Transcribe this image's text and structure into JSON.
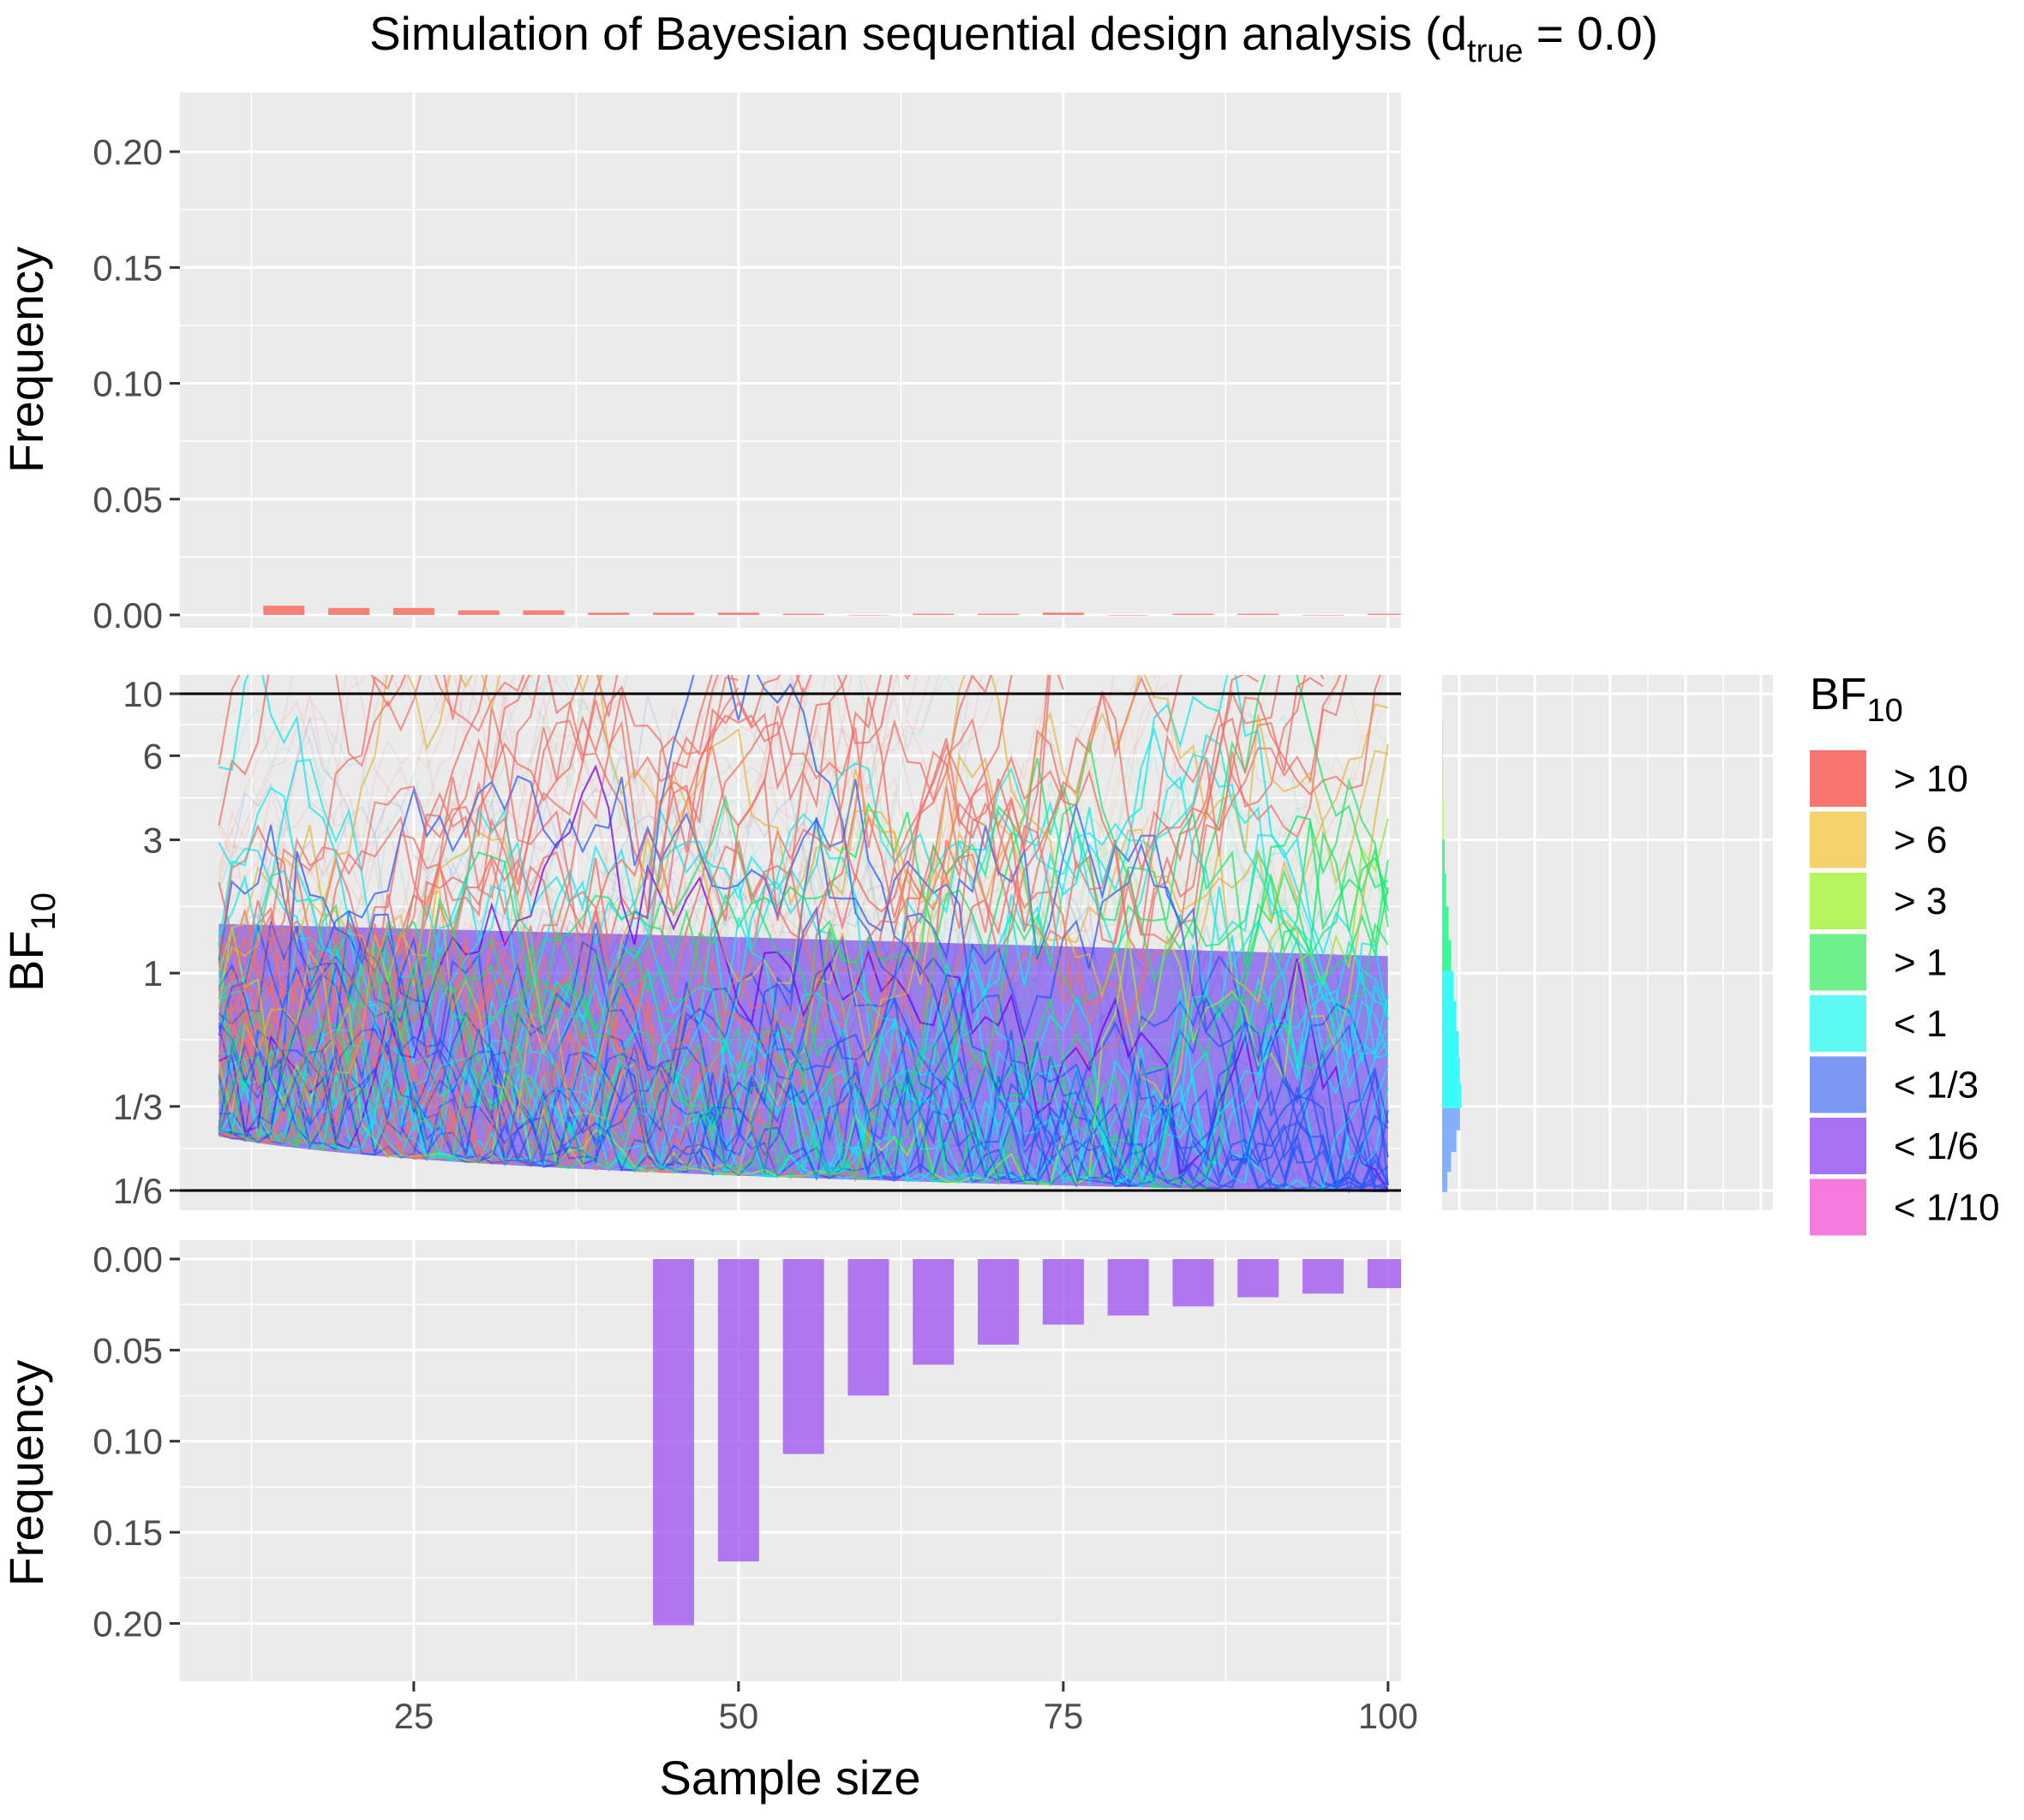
{
  "chart_data": [
    {
      "id": "top_histogram",
      "type": "bar",
      "ylabel": "Frequency",
      "ylim": [
        0,
        0.22
      ],
      "y_ticks": [
        {
          "value": 0.0,
          "label": "0.00"
        },
        {
          "value": 0.05,
          "label": "0.05"
        },
        {
          "value": 0.1,
          "label": "0.10"
        },
        {
          "value": 0.15,
          "label": "0.15"
        },
        {
          "value": 0.2,
          "label": "0.20"
        }
      ],
      "x": [
        15,
        20,
        25,
        30,
        35,
        40,
        45,
        50,
        55,
        60,
        65,
        70,
        75,
        80,
        85,
        90,
        95,
        100
      ],
      "values": [
        0.004,
        0.003,
        0.003,
        0.002,
        0.002,
        0.001,
        0.001,
        0.001,
        0.0005,
        0.0,
        0.0005,
        0.0005,
        0.001,
        0.0,
        0.0005,
        0.0005,
        0.0,
        0.0005
      ],
      "color": "#F8766D",
      "grid": true
    },
    {
      "id": "trajectories",
      "type": "line",
      "title": "Simulation of Bayesian sequential design analysis (d",
      "title_subscript": "true",
      "title_suffix": " = 0.0)",
      "ylabel": "BF",
      "ylabel_subscript": "10",
      "xlabel": "Sample size",
      "xlim": [
        10,
        100
      ],
      "x_ticks": [
        {
          "value": 25,
          "label": "25"
        },
        {
          "value": 50,
          "label": "50"
        },
        {
          "value": 75,
          "label": "75"
        },
        {
          "value": 100,
          "label": "100"
        }
      ],
      "y_ticks": [
        {
          "value": 10,
          "label": "10"
        },
        {
          "value": 6,
          "label": "6"
        },
        {
          "value": 3,
          "label": "3"
        },
        {
          "value": 1,
          "label": "1"
        },
        {
          "value": 0.3333,
          "label": "1/3"
        },
        {
          "value": 0.1667,
          "label": "1/6"
        }
      ],
      "thresholds": [
        10,
        0.1667
      ],
      "start_n": 10,
      "stop_n_step": 5,
      "grid": true
    },
    {
      "id": "right_density",
      "type": "bar",
      "orientation": "horizontal",
      "bins": [
        {
          "bf": 0.18,
          "value": 0.004,
          "color": "#619CFF"
        },
        {
          "bf": 0.21,
          "value": 0.007,
          "color": "#619CFF"
        },
        {
          "bf": 0.25,
          "value": 0.011,
          "color": "#619CFF"
        },
        {
          "bf": 0.3,
          "value": 0.014,
          "color": "#619CFF"
        },
        {
          "bf": 0.36,
          "value": 0.015,
          "color": "#00FFFF"
        },
        {
          "bf": 0.45,
          "value": 0.014,
          "color": "#00FFFF"
        },
        {
          "bf": 0.55,
          "value": 0.013,
          "color": "#00FFFF"
        },
        {
          "bf": 0.7,
          "value": 0.011,
          "color": "#00FFFF"
        },
        {
          "bf": 0.9,
          "value": 0.009,
          "color": "#00FFFF"
        },
        {
          "bf": 1.15,
          "value": 0.007,
          "color": "#00FF7F"
        },
        {
          "bf": 1.5,
          "value": 0.005,
          "color": "#00FF7F"
        },
        {
          "bf": 2.0,
          "value": 0.003,
          "color": "#00FF7F"
        },
        {
          "bf": 2.6,
          "value": 0.002,
          "color": "#00FF7F"
        },
        {
          "bf": 3.5,
          "value": 0.0012,
          "color": "#ADFF2F"
        },
        {
          "bf": 5.0,
          "value": 0.0008,
          "color": "#ADFF2F"
        },
        {
          "bf": 7.0,
          "value": 0.0006,
          "color": "#FFD700"
        }
      ],
      "grid": true
    },
    {
      "id": "bottom_histogram",
      "type": "bar",
      "ylabel": "Frequency",
      "ylim": [
        0,
        0.22
      ],
      "reversed": true,
      "y_ticks": [
        {
          "value": 0.0,
          "label": "0.00"
        },
        {
          "value": 0.05,
          "label": "0.05"
        },
        {
          "value": 0.1,
          "label": "0.10"
        },
        {
          "value": 0.15,
          "label": "0.15"
        },
        {
          "value": 0.2,
          "label": "0.20"
        }
      ],
      "x": [
        45,
        50,
        55,
        60,
        65,
        70,
        75,
        80,
        85,
        90,
        95,
        100
      ],
      "values": [
        0.201,
        0.166,
        0.107,
        0.075,
        0.058,
        0.047,
        0.036,
        0.031,
        0.026,
        0.021,
        0.019,
        0.016
      ],
      "color": "#9B4FF0",
      "grid": true
    }
  ],
  "legend": {
    "title": "BF",
    "title_subscript": "10",
    "placement": "right",
    "items": [
      {
        "label": "> 10",
        "color": "#F8766D"
      },
      {
        "label": "> 6",
        "color": "#F5D26B"
      },
      {
        "label": "> 3",
        "color": "#B7F55F"
      },
      {
        "label": "> 1",
        "color": "#6EF08A"
      },
      {
        "label": "< 1",
        "color": "#5CF8F2"
      },
      {
        "label": "< 1/3",
        "color": "#7B98F5"
      },
      {
        "label": "< 1/6",
        "color": "#AA70F2"
      },
      {
        "label": "< 1/10",
        "color": "#F57ADC"
      }
    ]
  }
}
